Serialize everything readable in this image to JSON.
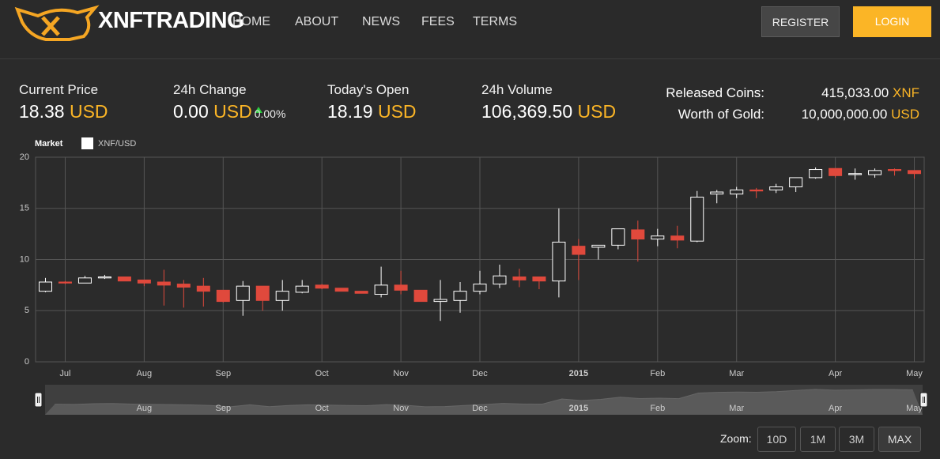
{
  "header": {
    "brand": "XNFTRADING",
    "nav": [
      "HOME",
      "ABOUT",
      "NEWS",
      "FEES",
      "TERMS"
    ],
    "register": "REGISTER",
    "login": "LOGIN"
  },
  "stats": [
    {
      "label": "Current Price",
      "value": "18.38",
      "unit": "USD"
    },
    {
      "label": "24h Change",
      "value": "0.00",
      "unit": "USD",
      "change": "0.00%"
    },
    {
      "label": "Today's Open",
      "value": "18.19",
      "unit": "USD"
    },
    {
      "label": "24h Volume",
      "value": "106,369.50",
      "unit": "USD"
    }
  ],
  "supply": [
    {
      "label": "Released Coins:",
      "value": "415,033.00",
      "unit": "XNF"
    },
    {
      "label": "Worth of Gold:",
      "value": "10,000,000.00",
      "unit": "USD"
    }
  ],
  "chart_data": {
    "type": "candlestick",
    "legend_title": "Market",
    "categories": [
      null,
      "Jul",
      null,
      null,
      null,
      "Aug",
      null,
      null,
      null,
      "Sep",
      null,
      null,
      null,
      null,
      "Oct",
      null,
      null,
      null,
      "Nov",
      null,
      null,
      null,
      "Dec",
      null,
      null,
      null,
      null,
      "2015",
      null,
      null,
      null,
      "Feb",
      null,
      null,
      null,
      "Mar",
      null,
      null,
      null,
      null,
      "Apr",
      null,
      null,
      null,
      "May"
    ],
    "series": [
      {
        "name": "XNF/USD",
        "up_color": "#ffffff",
        "down_color": "#e0493c",
        "open": [
          6.9,
          7.8,
          7.7,
          8.2,
          8.3,
          8.0,
          7.8,
          7.6,
          7.4,
          7.0,
          6.0,
          7.4,
          6.0,
          6.8,
          7.5,
          7.2,
          6.9,
          6.6,
          7.5,
          7.0,
          5.9,
          6.0,
          6.9,
          7.6,
          8.3,
          8.3,
          7.9,
          11.3,
          11.2,
          11.4,
          12.9,
          12.0,
          12.3,
          11.8,
          16.4,
          16.4,
          16.8,
          16.8,
          17.1,
          18.0,
          18.9,
          18.3,
          18.3,
          18.8,
          18.7
        ],
        "high": [
          8.2,
          7.9,
          8.4,
          8.5,
          8.3,
          8.0,
          9.0,
          8.0,
          8.2,
          7.0,
          7.9,
          7.4,
          8.0,
          8.0,
          7.6,
          7.2,
          6.9,
          9.3,
          8.9,
          7.0,
          8.0,
          7.8,
          8.9,
          9.5,
          9.1,
          8.3,
          15.0,
          12.0,
          11.4,
          13.0,
          13.8,
          13.0,
          13.3,
          16.7,
          16.8,
          17.1,
          17.0,
          17.4,
          18.0,
          19.0,
          18.9,
          18.9,
          18.9,
          18.9,
          18.7
        ],
        "low": [
          6.8,
          7.6,
          7.7,
          8.1,
          7.9,
          7.4,
          5.5,
          5.3,
          5.4,
          5.8,
          4.5,
          5.0,
          5.0,
          6.7,
          7.1,
          6.9,
          6.7,
          6.3,
          6.6,
          5.9,
          4.0,
          4.8,
          6.6,
          7.2,
          7.3,
          7.1,
          6.3,
          8.0,
          10.0,
          11.0,
          9.8,
          11.3,
          11.1,
          11.7,
          15.5,
          16.0,
          16.0,
          16.5,
          16.6,
          17.9,
          18.0,
          17.8,
          18.0,
          18.2,
          17.9
        ],
        "close": [
          7.8,
          7.7,
          8.2,
          8.3,
          7.9,
          7.7,
          7.5,
          7.3,
          6.9,
          5.9,
          7.4,
          6.0,
          6.9,
          7.4,
          7.2,
          6.9,
          6.7,
          7.5,
          7.0,
          5.9,
          6.1,
          6.9,
          7.6,
          8.4,
          8.0,
          7.9,
          11.7,
          10.5,
          11.4,
          13.0,
          12.0,
          12.3,
          11.9,
          16.1,
          16.6,
          16.8,
          16.7,
          17.1,
          18.0,
          18.8,
          18.2,
          18.4,
          18.7,
          18.7,
          18.4
        ]
      }
    ],
    "ylim": [
      0,
      20
    ],
    "yticks": [
      0,
      5,
      10,
      15,
      20
    ],
    "grid": true,
    "navigator": {
      "categories": [
        null,
        null,
        null,
        null,
        null,
        "Aug",
        null,
        null,
        null,
        "Sep",
        null,
        null,
        null,
        null,
        "Oct",
        null,
        null,
        null,
        "Nov",
        null,
        null,
        null,
        "Dec",
        null,
        null,
        null,
        null,
        "2015",
        null,
        null,
        null,
        "Feb",
        null,
        null,
        null,
        "Mar",
        null,
        null,
        null,
        null,
        "Apr",
        null,
        null,
        null,
        "May"
      ]
    }
  },
  "zoom": {
    "label": "Zoom:",
    "buttons": [
      "10D",
      "1M",
      "3M",
      "MAX"
    ]
  }
}
